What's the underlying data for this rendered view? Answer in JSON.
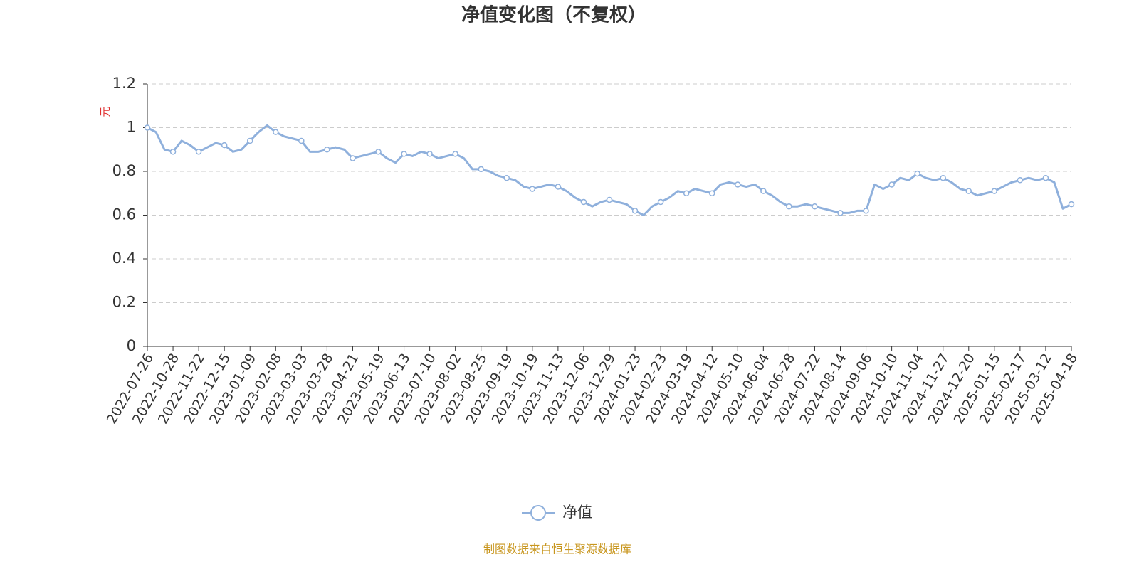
{
  "chart_data": {
    "type": "line",
    "title": "净值变化图（不复权）",
    "y_label": "元",
    "source": "制图数据来自恒生聚源数据库",
    "categories": [
      "2022-07-26",
      null,
      null,
      "2022-10-28",
      null,
      null,
      "2022-11-22",
      null,
      null,
      "2022-12-15",
      null,
      null,
      "2023-01-09",
      null,
      null,
      "2023-02-08",
      null,
      null,
      "2023-03-03",
      null,
      null,
      "2023-03-28",
      null,
      null,
      "2023-04-21",
      null,
      null,
      "2023-05-19",
      null,
      null,
      "2023-06-13",
      null,
      null,
      "2023-07-10",
      null,
      null,
      "2023-08-02",
      null,
      null,
      "2023-08-25",
      null,
      null,
      "2023-09-19",
      null,
      null,
      "2023-10-19",
      null,
      null,
      "2023-11-13",
      null,
      null,
      "2023-12-06",
      null,
      null,
      "2023-12-29",
      null,
      null,
      "2024-01-23",
      null,
      null,
      "2024-02-23",
      null,
      null,
      "2024-03-19",
      null,
      null,
      "2024-04-12",
      null,
      null,
      "2024-05-10",
      null,
      null,
      "2024-06-04",
      null,
      null,
      "2024-06-28",
      null,
      null,
      "2024-07-22",
      null,
      null,
      "2024-08-14",
      null,
      null,
      "2024-09-06",
      null,
      null,
      "2024-10-10",
      null,
      null,
      "2024-11-04",
      null,
      null,
      "2024-11-27",
      null,
      null,
      "2024-12-20",
      null,
      null,
      "2025-01-15",
      null,
      null,
      "2025-02-17",
      null,
      null,
      "2025-03-12",
      null,
      null,
      "2025-04-18"
    ],
    "series": [
      {
        "name": "净值",
        "color": "#8fb0dc",
        "values": [
          1.0,
          0.98,
          0.9,
          0.89,
          0.94,
          0.92,
          0.89,
          0.91,
          0.93,
          0.92,
          0.89,
          0.9,
          0.94,
          0.98,
          1.01,
          0.98,
          0.96,
          0.95,
          0.94,
          0.89,
          0.89,
          0.9,
          0.91,
          0.9,
          0.86,
          0.87,
          0.88,
          0.89,
          0.86,
          0.84,
          0.88,
          0.87,
          0.89,
          0.88,
          0.86,
          0.87,
          0.88,
          0.86,
          0.81,
          0.81,
          0.8,
          0.78,
          0.77,
          0.76,
          0.73,
          0.72,
          0.73,
          0.74,
          0.73,
          0.71,
          0.68,
          0.66,
          0.64,
          0.66,
          0.67,
          0.66,
          0.65,
          0.62,
          0.6,
          0.64,
          0.66,
          0.68,
          0.71,
          0.7,
          0.72,
          0.71,
          0.7,
          0.74,
          0.75,
          0.74,
          0.73,
          0.74,
          0.71,
          0.69,
          0.66,
          0.64,
          0.64,
          0.65,
          0.64,
          0.63,
          0.62,
          0.61,
          0.61,
          0.62,
          0.62,
          0.74,
          0.72,
          0.74,
          0.77,
          0.76,
          0.79,
          0.77,
          0.76,
          0.77,
          0.75,
          0.72,
          0.71,
          0.69,
          0.7,
          0.71,
          0.73,
          0.75,
          0.76,
          0.77,
          0.76,
          0.77,
          0.75,
          0.63,
          0.65
        ]
      }
    ],
    "ylim": [
      0,
      1.2
    ],
    "yticks": [
      0,
      0.2,
      0.4,
      0.6,
      0.8,
      1,
      1.2
    ],
    "grid": true,
    "legend": "bottom"
  }
}
